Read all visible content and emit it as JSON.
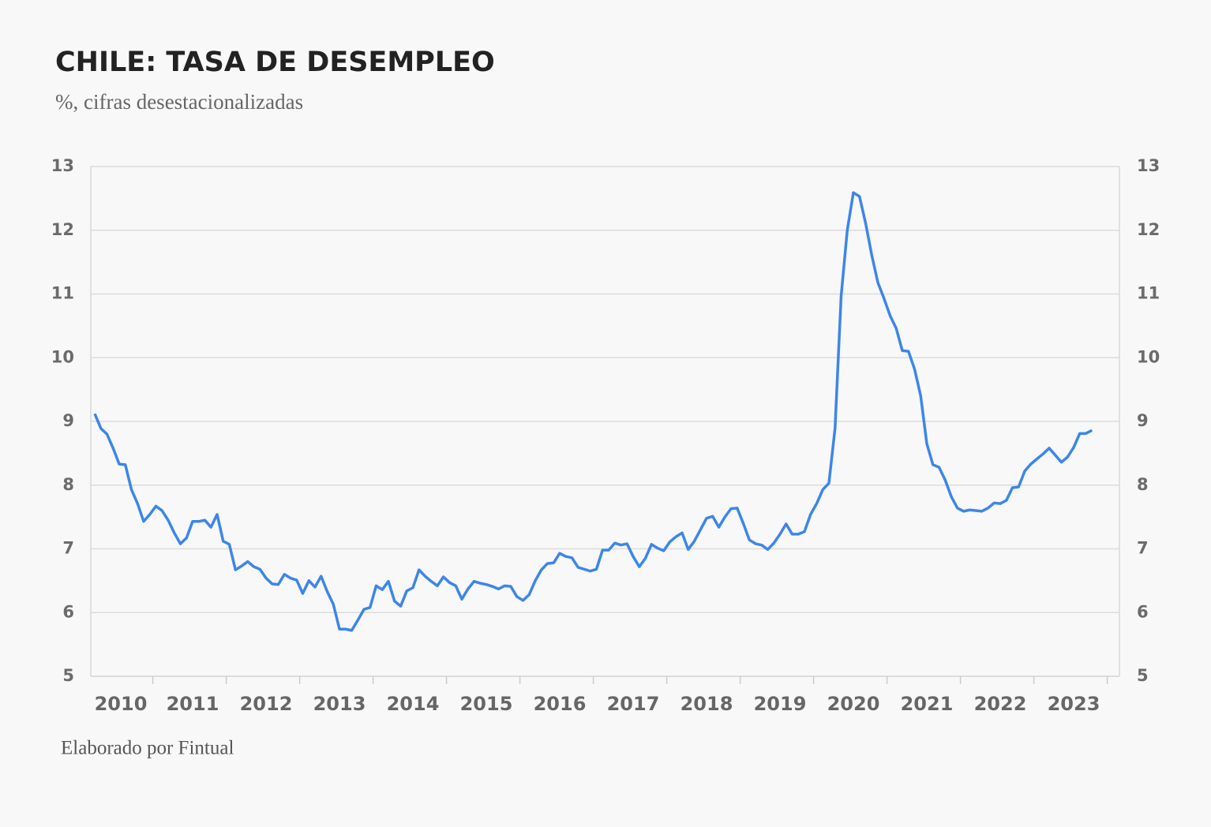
{
  "chart_data": {
    "type": "line",
    "title": "CHILE: TASA DE DESEMPLEO",
    "subtitle": "%, cifras desestacionalizadas",
    "source": "Elaborado por Fintual",
    "categories": [
      null,
      null,
      null,
      null,
      "2010",
      null,
      null,
      null,
      null,
      null,
      null,
      null,
      null,
      null,
      null,
      null,
      "2011",
      null,
      null,
      null,
      null,
      null,
      null,
      null,
      null,
      null,
      null,
      null,
      "2012",
      null,
      null,
      null,
      null,
      null,
      null,
      null,
      null,
      null,
      null,
      null,
      "2013",
      null,
      null,
      null,
      null,
      null,
      null,
      null,
      null,
      null,
      null,
      null,
      "2014",
      null,
      null,
      null,
      null,
      null,
      null,
      null,
      null,
      null,
      null,
      null,
      "2015",
      null,
      null,
      null,
      null,
      null,
      null,
      null,
      null,
      null,
      null,
      null,
      "2016",
      null,
      null,
      null,
      null,
      null,
      null,
      null,
      null,
      null,
      null,
      null,
      "2017",
      null,
      null,
      null,
      null,
      null,
      null,
      null,
      null,
      null,
      null,
      null,
      "2018",
      null,
      null,
      null,
      null,
      null,
      null,
      null,
      null,
      null,
      null,
      null,
      "2019",
      null,
      null,
      null,
      null,
      null,
      null,
      null,
      null,
      null,
      null,
      null,
      "2020",
      null,
      null,
      null,
      null,
      null,
      null,
      null,
      null,
      null,
      null,
      null,
      "2021",
      null,
      null,
      null,
      null,
      null,
      null,
      null,
      null,
      null,
      null,
      null,
      "2022",
      null,
      null,
      null,
      null,
      null,
      null,
      null,
      null,
      null,
      null,
      null,
      "2023",
      null,
      null,
      null
    ],
    "values": [
      9.12,
      8.89,
      8.8,
      8.58,
      8.33,
      8.32,
      7.93,
      7.71,
      7.43,
      7.54,
      7.67,
      7.6,
      7.45,
      7.25,
      7.08,
      7.17,
      7.43,
      7.43,
      7.45,
      7.34,
      7.54,
      7.12,
      7.07,
      6.67,
      6.73,
      6.8,
      6.72,
      6.68,
      6.54,
      6.45,
      6.44,
      6.6,
      6.54,
      6.51,
      6.3,
      6.5,
      6.4,
      6.57,
      6.33,
      6.13,
      5.74,
      5.74,
      5.72,
      5.88,
      6.05,
      6.08,
      6.42,
      6.36,
      6.49,
      6.18,
      6.1,
      6.34,
      6.39,
      6.67,
      6.57,
      6.49,
      6.42,
      6.56,
      6.47,
      6.42,
      6.21,
      6.37,
      6.49,
      6.46,
      6.44,
      6.41,
      6.37,
      6.42,
      6.41,
      6.25,
      6.19,
      6.28,
      6.5,
      6.67,
      6.77,
      6.78,
      6.93,
      6.88,
      6.86,
      6.71,
      6.68,
      6.65,
      6.68,
      6.98,
      6.98,
      7.09,
      7.06,
      7.08,
      6.88,
      6.72,
      6.85,
      7.07,
      7.01,
      6.97,
      7.11,
      7.19,
      7.25,
      6.99,
      7.12,
      7.3,
      7.48,
      7.51,
      7.34,
      7.5,
      7.63,
      7.64,
      7.4,
      7.14,
      7.08,
      7.06,
      6.99,
      7.09,
      7.23,
      7.39,
      7.23,
      7.23,
      7.27,
      7.54,
      7.71,
      7.93,
      8.03,
      8.89,
      10.97,
      12.0,
      12.59,
      12.53,
      12.11,
      11.61,
      11.18,
      10.93,
      10.66,
      10.46,
      10.11,
      10.1,
      9.82,
      9.4,
      8.65,
      8.32,
      8.28,
      8.08,
      7.82,
      7.64,
      7.59,
      7.61,
      7.6,
      7.59,
      7.64,
      7.72,
      7.71,
      7.76,
      7.96,
      7.97,
      8.22,
      8.33,
      8.41,
      8.49,
      8.58,
      8.47,
      8.36,
      8.44,
      8.59,
      8.81,
      8.81,
      8.86
    ],
    "color": "#3d86e8",
    "ylim": [
      5,
      13
    ],
    "yticks": [
      5,
      6,
      7,
      8,
      9,
      10,
      11,
      12,
      13
    ],
    "grid": true
  }
}
